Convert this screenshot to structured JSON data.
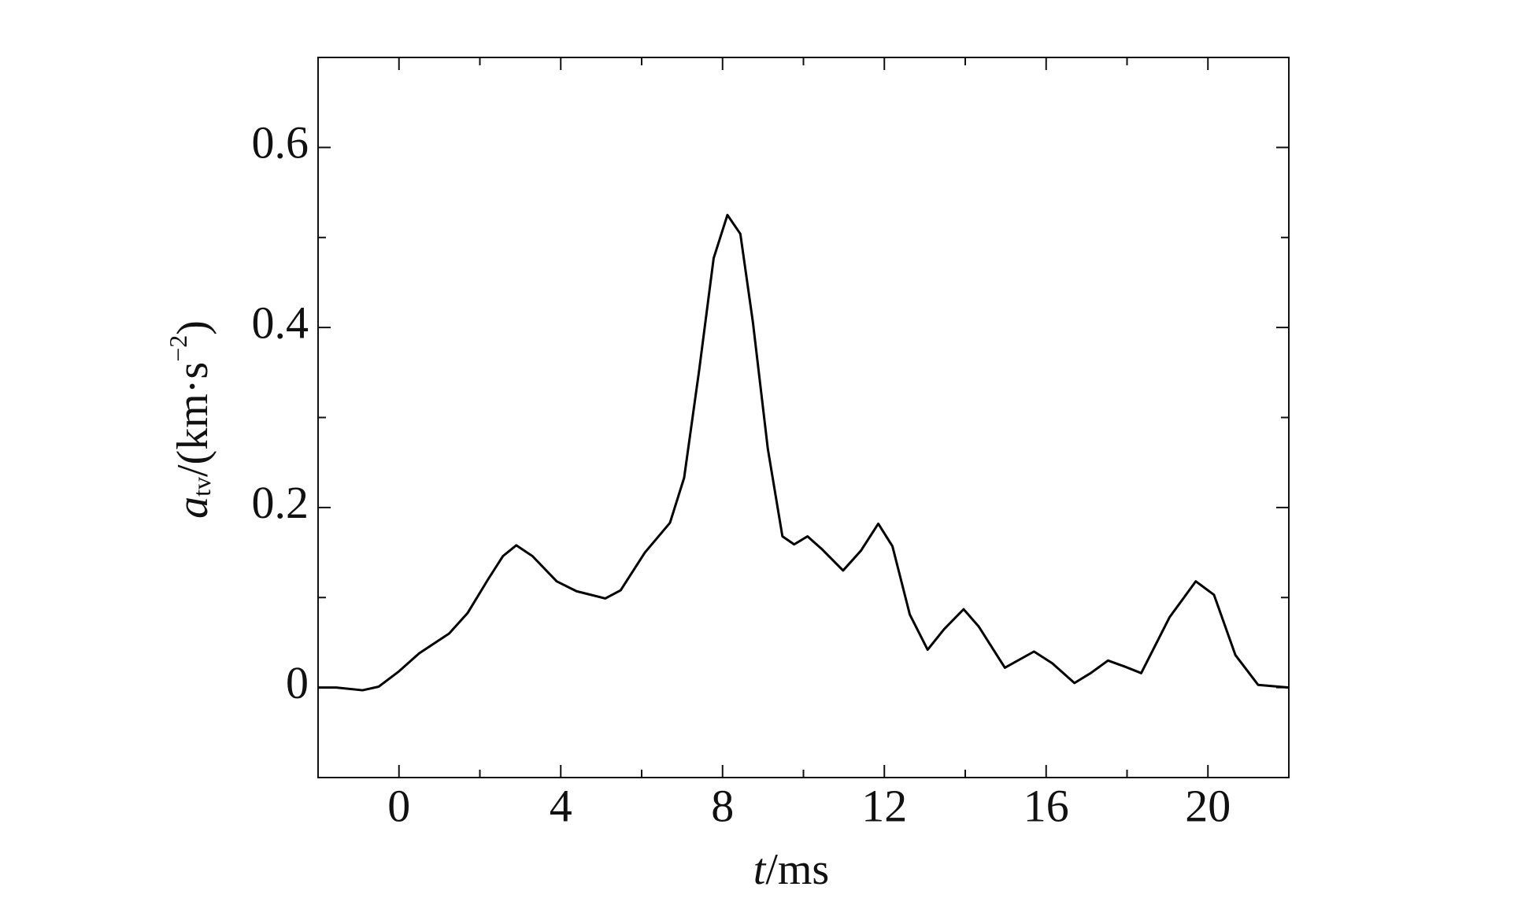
{
  "chart_data": {
    "type": "line",
    "xlabel": {
      "symbol": "t",
      "unit": "/ms"
    },
    "ylabel": {
      "symbol": "a",
      "subscript": "tv",
      "unit": "/(km·s",
      "superscript": "−2",
      "close": ")"
    },
    "x": [
      -2,
      -1.55,
      -0.9,
      -0.5,
      0,
      0.5,
      1.24,
      1.7,
      2.2,
      2.57,
      2.9,
      3.3,
      3.9,
      4.39,
      5.1,
      5.48,
      6.08,
      6.7,
      7.05,
      7.42,
      7.78,
      8.12,
      8.44,
      8.75,
      9.12,
      9.48,
      9.77,
      10.1,
      10.45,
      10.98,
      11.42,
      11.85,
      12.2,
      12.63,
      13.07,
      13.48,
      13.96,
      14.33,
      14.98,
      15.7,
      16.15,
      16.7,
      17.1,
      17.53,
      17.96,
      18.35,
      19.05,
      19.7,
      20.15,
      20.68,
      21.24,
      22
    ],
    "series": [
      {
        "color": "#000000",
        "values": [
          0,
          0,
          -0.003,
          0.001,
          0.018,
          0.038,
          0.06,
          0.083,
          0.12,
          0.146,
          0.158,
          0.146,
          0.118,
          0.107,
          0.099,
          0.108,
          0.15,
          0.183,
          0.233,
          0.352,
          0.477,
          0.525,
          0.504,
          0.406,
          0.265,
          0.168,
          0.159,
          0.168,
          0.154,
          0.13,
          0.152,
          0.182,
          0.157,
          0.081,
          0.042,
          0.065,
          0.087,
          0.068,
          0.022,
          0.04,
          0.027,
          0.005,
          0.016,
          0.03,
          0.023,
          0.016,
          0.078,
          0.118,
          0.103,
          0.036,
          0.003,
          0
        ]
      }
    ],
    "xlim": [
      -2,
      22
    ],
    "ylim": [
      -0.1,
      0.7
    ],
    "xticks": [
      0,
      4,
      8,
      12,
      16,
      20
    ],
    "yticks": [
      0,
      0.2,
      0.4,
      0.6
    ],
    "xminor": [
      2,
      6,
      10,
      14,
      18
    ],
    "yminor": [
      0.1,
      0.3,
      0.5
    ],
    "grid": false
  }
}
